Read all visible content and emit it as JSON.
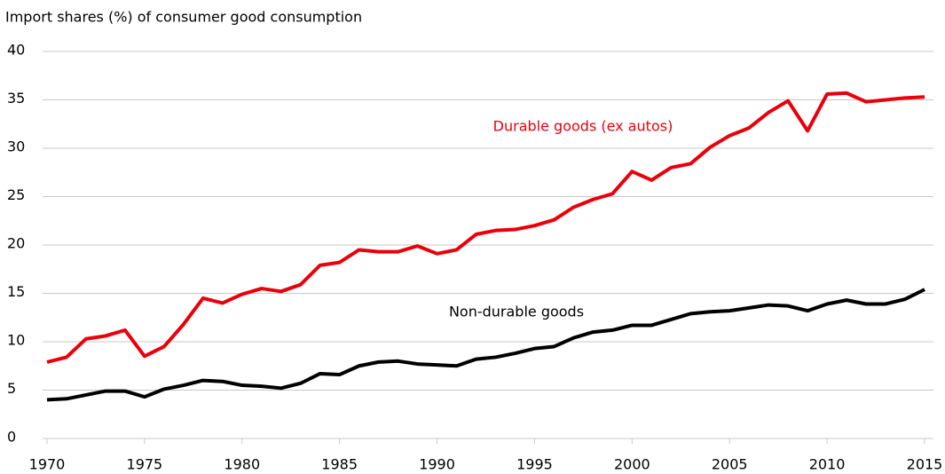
{
  "chart_data": {
    "type": "line",
    "title": "Import shares (%) of consumer good consumption",
    "x": [
      1970,
      1971,
      1972,
      1973,
      1974,
      1975,
      1976,
      1977,
      1978,
      1979,
      1980,
      1981,
      1982,
      1983,
      1984,
      1985,
      1986,
      1987,
      1988,
      1989,
      1990,
      1991,
      1992,
      1993,
      1994,
      1995,
      1996,
      1997,
      1998,
      1999,
      2000,
      2001,
      2002,
      2003,
      2004,
      2005,
      2006,
      2007,
      2008,
      2009,
      2010,
      2011,
      2012,
      2013,
      2014,
      2015
    ],
    "series": [
      {
        "name": "Durable goods (ex autos)",
        "color": "#e8000b",
        "values": [
          7.9,
          8.4,
          10.3,
          10.6,
          11.2,
          8.5,
          9.5,
          11.8,
          14.5,
          14.0,
          14.9,
          15.5,
          15.2,
          15.9,
          17.9,
          18.2,
          19.5,
          19.3,
          19.3,
          19.9,
          19.1,
          19.5,
          21.1,
          21.5,
          21.6,
          22.0,
          22.6,
          23.9,
          24.7,
          25.3,
          27.6,
          26.7,
          28.0,
          28.4,
          30.1,
          31.3,
          32.1,
          33.7,
          34.9,
          31.8,
          35.6,
          35.7,
          34.8,
          35.0,
          35.2,
          35.3
        ]
      },
      {
        "name": "Non-durable goods",
        "color": "#000000",
        "values": [
          4.0,
          4.1,
          4.5,
          4.9,
          4.9,
          4.3,
          5.1,
          5.5,
          6.0,
          5.9,
          5.5,
          5.4,
          5.2,
          5.7,
          6.7,
          6.6,
          7.5,
          7.9,
          8.0,
          7.7,
          7.6,
          7.5,
          8.2,
          8.4,
          8.8,
          9.3,
          9.5,
          10.4,
          11.0,
          11.2,
          11.7,
          11.7,
          12.3,
          12.9,
          13.1,
          13.2,
          13.5,
          13.8,
          13.7,
          13.2,
          13.9,
          14.3,
          13.9,
          13.9,
          14.4,
          15.4
        ]
      }
    ],
    "xlim": [
      1970,
      2015
    ],
    "xticks": [
      1970,
      1975,
      1980,
      1985,
      1990,
      1995,
      2000,
      2005,
      2010,
      2015
    ],
    "ylim": [
      0,
      40
    ],
    "yticks": [
      0,
      5,
      10,
      15,
      20,
      25,
      30,
      35,
      40
    ],
    "grid": true
  }
}
